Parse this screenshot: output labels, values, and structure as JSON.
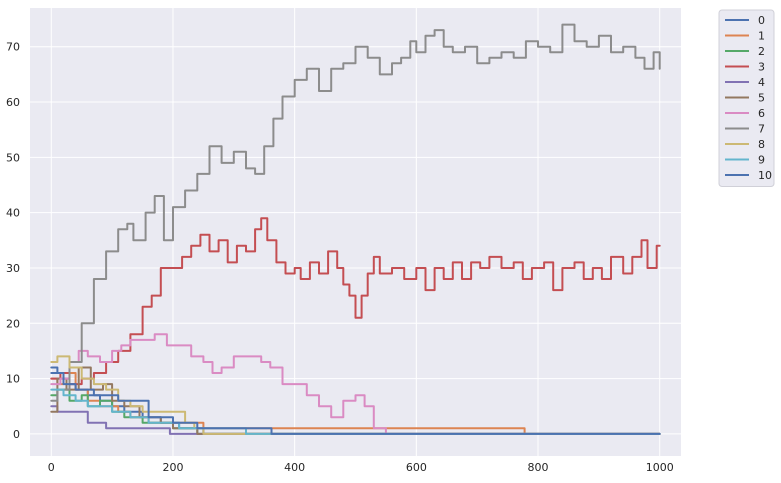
{
  "chart_data": {
    "type": "line",
    "xlabel": "",
    "ylabel": "",
    "xlim": [
      -35,
      1035
    ],
    "ylim": [
      -4,
      77
    ],
    "xticks": [
      0,
      200,
      400,
      600,
      800,
      1000
    ],
    "yticks": [
      0,
      10,
      20,
      30,
      40,
      50,
      60,
      70
    ],
    "grid": true,
    "legend_position": "outside-top-right",
    "series": [
      {
        "name": "0",
        "color": "#4c72b0",
        "points": [
          [
            0,
            12
          ],
          [
            10,
            11
          ],
          [
            20,
            10
          ],
          [
            30,
            9
          ],
          [
            40,
            8
          ],
          [
            60,
            7
          ],
          [
            80,
            6
          ],
          [
            100,
            5
          ],
          [
            120,
            4
          ],
          [
            150,
            3
          ],
          [
            180,
            2
          ],
          [
            210,
            1
          ],
          [
            250,
            0
          ],
          [
            1000,
            0
          ]
        ]
      },
      {
        "name": "1",
        "color": "#dd8452",
        "points": [
          [
            0,
            10
          ],
          [
            10,
            9
          ],
          [
            20,
            11
          ],
          [
            40,
            8
          ],
          [
            60,
            6
          ],
          [
            80,
            5
          ],
          [
            110,
            4
          ],
          [
            130,
            3
          ],
          [
            160,
            2
          ],
          [
            250,
            1
          ],
          [
            360,
            1
          ],
          [
            775,
            1
          ],
          [
            778,
            0
          ],
          [
            1000,
            0
          ]
        ]
      },
      {
        "name": "2",
        "color": "#55a868",
        "points": [
          [
            0,
            7
          ],
          [
            10,
            8
          ],
          [
            30,
            6
          ],
          [
            50,
            7
          ],
          [
            60,
            5
          ],
          [
            80,
            6
          ],
          [
            100,
            4
          ],
          [
            120,
            3
          ],
          [
            150,
            2
          ],
          [
            200,
            1
          ],
          [
            225,
            1
          ],
          [
            240,
            0
          ],
          [
            1000,
            0
          ]
        ]
      },
      {
        "name": "3",
        "color": "#c44e52",
        "points": [
          [
            0,
            10
          ],
          [
            15,
            11
          ],
          [
            30,
            9
          ],
          [
            50,
            10
          ],
          [
            70,
            11
          ],
          [
            90,
            13
          ],
          [
            110,
            15
          ],
          [
            130,
            18
          ],
          [
            150,
            23
          ],
          [
            165,
            25
          ],
          [
            180,
            30
          ],
          [
            200,
            30
          ],
          [
            215,
            32
          ],
          [
            230,
            34
          ],
          [
            245,
            36
          ],
          [
            260,
            33
          ],
          [
            275,
            35
          ],
          [
            290,
            31
          ],
          [
            305,
            34
          ],
          [
            320,
            33
          ],
          [
            335,
            37
          ],
          [
            345,
            39
          ],
          [
            355,
            35
          ],
          [
            370,
            31
          ],
          [
            385,
            29
          ],
          [
            400,
            30
          ],
          [
            410,
            28
          ],
          [
            425,
            31
          ],
          [
            440,
            29
          ],
          [
            455,
            33
          ],
          [
            470,
            30
          ],
          [
            480,
            27
          ],
          [
            490,
            25
          ],
          [
            500,
            21
          ],
          [
            510,
            25
          ],
          [
            520,
            29
          ],
          [
            530,
            32
          ],
          [
            540,
            29
          ],
          [
            560,
            30
          ],
          [
            580,
            28
          ],
          [
            600,
            30
          ],
          [
            615,
            26
          ],
          [
            630,
            30
          ],
          [
            645,
            28
          ],
          [
            660,
            31
          ],
          [
            675,
            28
          ],
          [
            690,
            31
          ],
          [
            705,
            30
          ],
          [
            720,
            32
          ],
          [
            740,
            30
          ],
          [
            760,
            31
          ],
          [
            775,
            28
          ],
          [
            790,
            30
          ],
          [
            810,
            31
          ],
          [
            825,
            26
          ],
          [
            840,
            30
          ],
          [
            860,
            31
          ],
          [
            875,
            28
          ],
          [
            890,
            30
          ],
          [
            905,
            28
          ],
          [
            920,
            32
          ],
          [
            940,
            29
          ],
          [
            955,
            32
          ],
          [
            970,
            35
          ],
          [
            980,
            30
          ],
          [
            995,
            34
          ],
          [
            1000,
            34
          ]
        ]
      },
      {
        "name": "4",
        "color": "#8172b3",
        "points": [
          [
            0,
            5
          ],
          [
            10,
            4
          ],
          [
            40,
            4
          ],
          [
            60,
            2
          ],
          [
            90,
            1
          ],
          [
            150,
            1
          ],
          [
            195,
            0
          ],
          [
            1000,
            0
          ]
        ]
      },
      {
        "name": "5",
        "color": "#937860",
        "points": [
          [
            0,
            4
          ],
          [
            10,
            10
          ],
          [
            25,
            8
          ],
          [
            45,
            12
          ],
          [
            65,
            8
          ],
          [
            85,
            9
          ],
          [
            100,
            6
          ],
          [
            120,
            5
          ],
          [
            145,
            3
          ],
          [
            180,
            2
          ],
          [
            200,
            1
          ],
          [
            240,
            0
          ],
          [
            1000,
            0
          ]
        ]
      },
      {
        "name": "6",
        "color": "#da8bc3",
        "points": [
          [
            0,
            9
          ],
          [
            15,
            10
          ],
          [
            30,
            13
          ],
          [
            45,
            15
          ],
          [
            60,
            14
          ],
          [
            80,
            13
          ],
          [
            100,
            15
          ],
          [
            115,
            16
          ],
          [
            130,
            17
          ],
          [
            150,
            17
          ],
          [
            170,
            18
          ],
          [
            190,
            16
          ],
          [
            215,
            16
          ],
          [
            230,
            14
          ],
          [
            250,
            13
          ],
          [
            265,
            11
          ],
          [
            280,
            12
          ],
          [
            300,
            14
          ],
          [
            320,
            14
          ],
          [
            345,
            13
          ],
          [
            360,
            12
          ],
          [
            380,
            9
          ],
          [
            400,
            9
          ],
          [
            420,
            7
          ],
          [
            440,
            5
          ],
          [
            460,
            3
          ],
          [
            480,
            6
          ],
          [
            500,
            7
          ],
          [
            515,
            5
          ],
          [
            530,
            1
          ],
          [
            550,
            0
          ],
          [
            1000,
            0
          ]
        ]
      },
      {
        "name": "7",
        "color": "#8c8c8c",
        "points": [
          [
            0,
            6
          ],
          [
            10,
            8
          ],
          [
            30,
            13
          ],
          [
            50,
            20
          ],
          [
            70,
            28
          ],
          [
            90,
            33
          ],
          [
            110,
            37
          ],
          [
            125,
            38
          ],
          [
            135,
            35
          ],
          [
            155,
            40
          ],
          [
            170,
            43
          ],
          [
            185,
            35
          ],
          [
            200,
            41
          ],
          [
            220,
            44
          ],
          [
            240,
            47
          ],
          [
            260,
            52
          ],
          [
            280,
            49
          ],
          [
            300,
            51
          ],
          [
            320,
            48
          ],
          [
            335,
            47
          ],
          [
            350,
            52
          ],
          [
            365,
            57
          ],
          [
            380,
            61
          ],
          [
            400,
            64
          ],
          [
            420,
            66
          ],
          [
            440,
            62
          ],
          [
            460,
            66
          ],
          [
            480,
            67
          ],
          [
            500,
            70
          ],
          [
            520,
            68
          ],
          [
            540,
            65
          ],
          [
            560,
            67
          ],
          [
            575,
            68
          ],
          [
            590,
            71
          ],
          [
            600,
            69
          ],
          [
            615,
            72
          ],
          [
            630,
            73
          ],
          [
            645,
            70
          ],
          [
            660,
            69
          ],
          [
            680,
            70
          ],
          [
            700,
            67
          ],
          [
            720,
            68
          ],
          [
            740,
            69
          ],
          [
            760,
            68
          ],
          [
            780,
            71
          ],
          [
            800,
            70
          ],
          [
            820,
            69
          ],
          [
            840,
            74
          ],
          [
            860,
            71
          ],
          [
            880,
            70
          ],
          [
            900,
            72
          ],
          [
            920,
            69
          ],
          [
            940,
            70
          ],
          [
            960,
            68
          ],
          [
            975,
            66
          ],
          [
            990,
            69
          ],
          [
            1000,
            66
          ]
        ]
      },
      {
        "name": "8",
        "color": "#ccb974",
        "points": [
          [
            0,
            13
          ],
          [
            10,
            14
          ],
          [
            30,
            12
          ],
          [
            50,
            10
          ],
          [
            70,
            9
          ],
          [
            90,
            8
          ],
          [
            110,
            6
          ],
          [
            130,
            5
          ],
          [
            150,
            4
          ],
          [
            200,
            4
          ],
          [
            220,
            2
          ],
          [
            235,
            1
          ],
          [
            250,
            0
          ],
          [
            1000,
            0
          ]
        ]
      },
      {
        "name": "9",
        "color": "#64b5cd",
        "points": [
          [
            0,
            8
          ],
          [
            20,
            7
          ],
          [
            40,
            6
          ],
          [
            60,
            5
          ],
          [
            100,
            4
          ],
          [
            130,
            3
          ],
          [
            160,
            2
          ],
          [
            210,
            1
          ],
          [
            260,
            1
          ],
          [
            320,
            0
          ],
          [
            1000,
            0
          ]
        ]
      },
      {
        "name": "10",
        "color": "#4c72b0",
        "points": [
          [
            0,
            11
          ],
          [
            20,
            9
          ],
          [
            40,
            8
          ],
          [
            70,
            7
          ],
          [
            110,
            6
          ],
          [
            160,
            3
          ],
          [
            200,
            2
          ],
          [
            240,
            1
          ],
          [
            300,
            1
          ],
          [
            362,
            0
          ],
          [
            1000,
            0
          ]
        ]
      }
    ]
  }
}
